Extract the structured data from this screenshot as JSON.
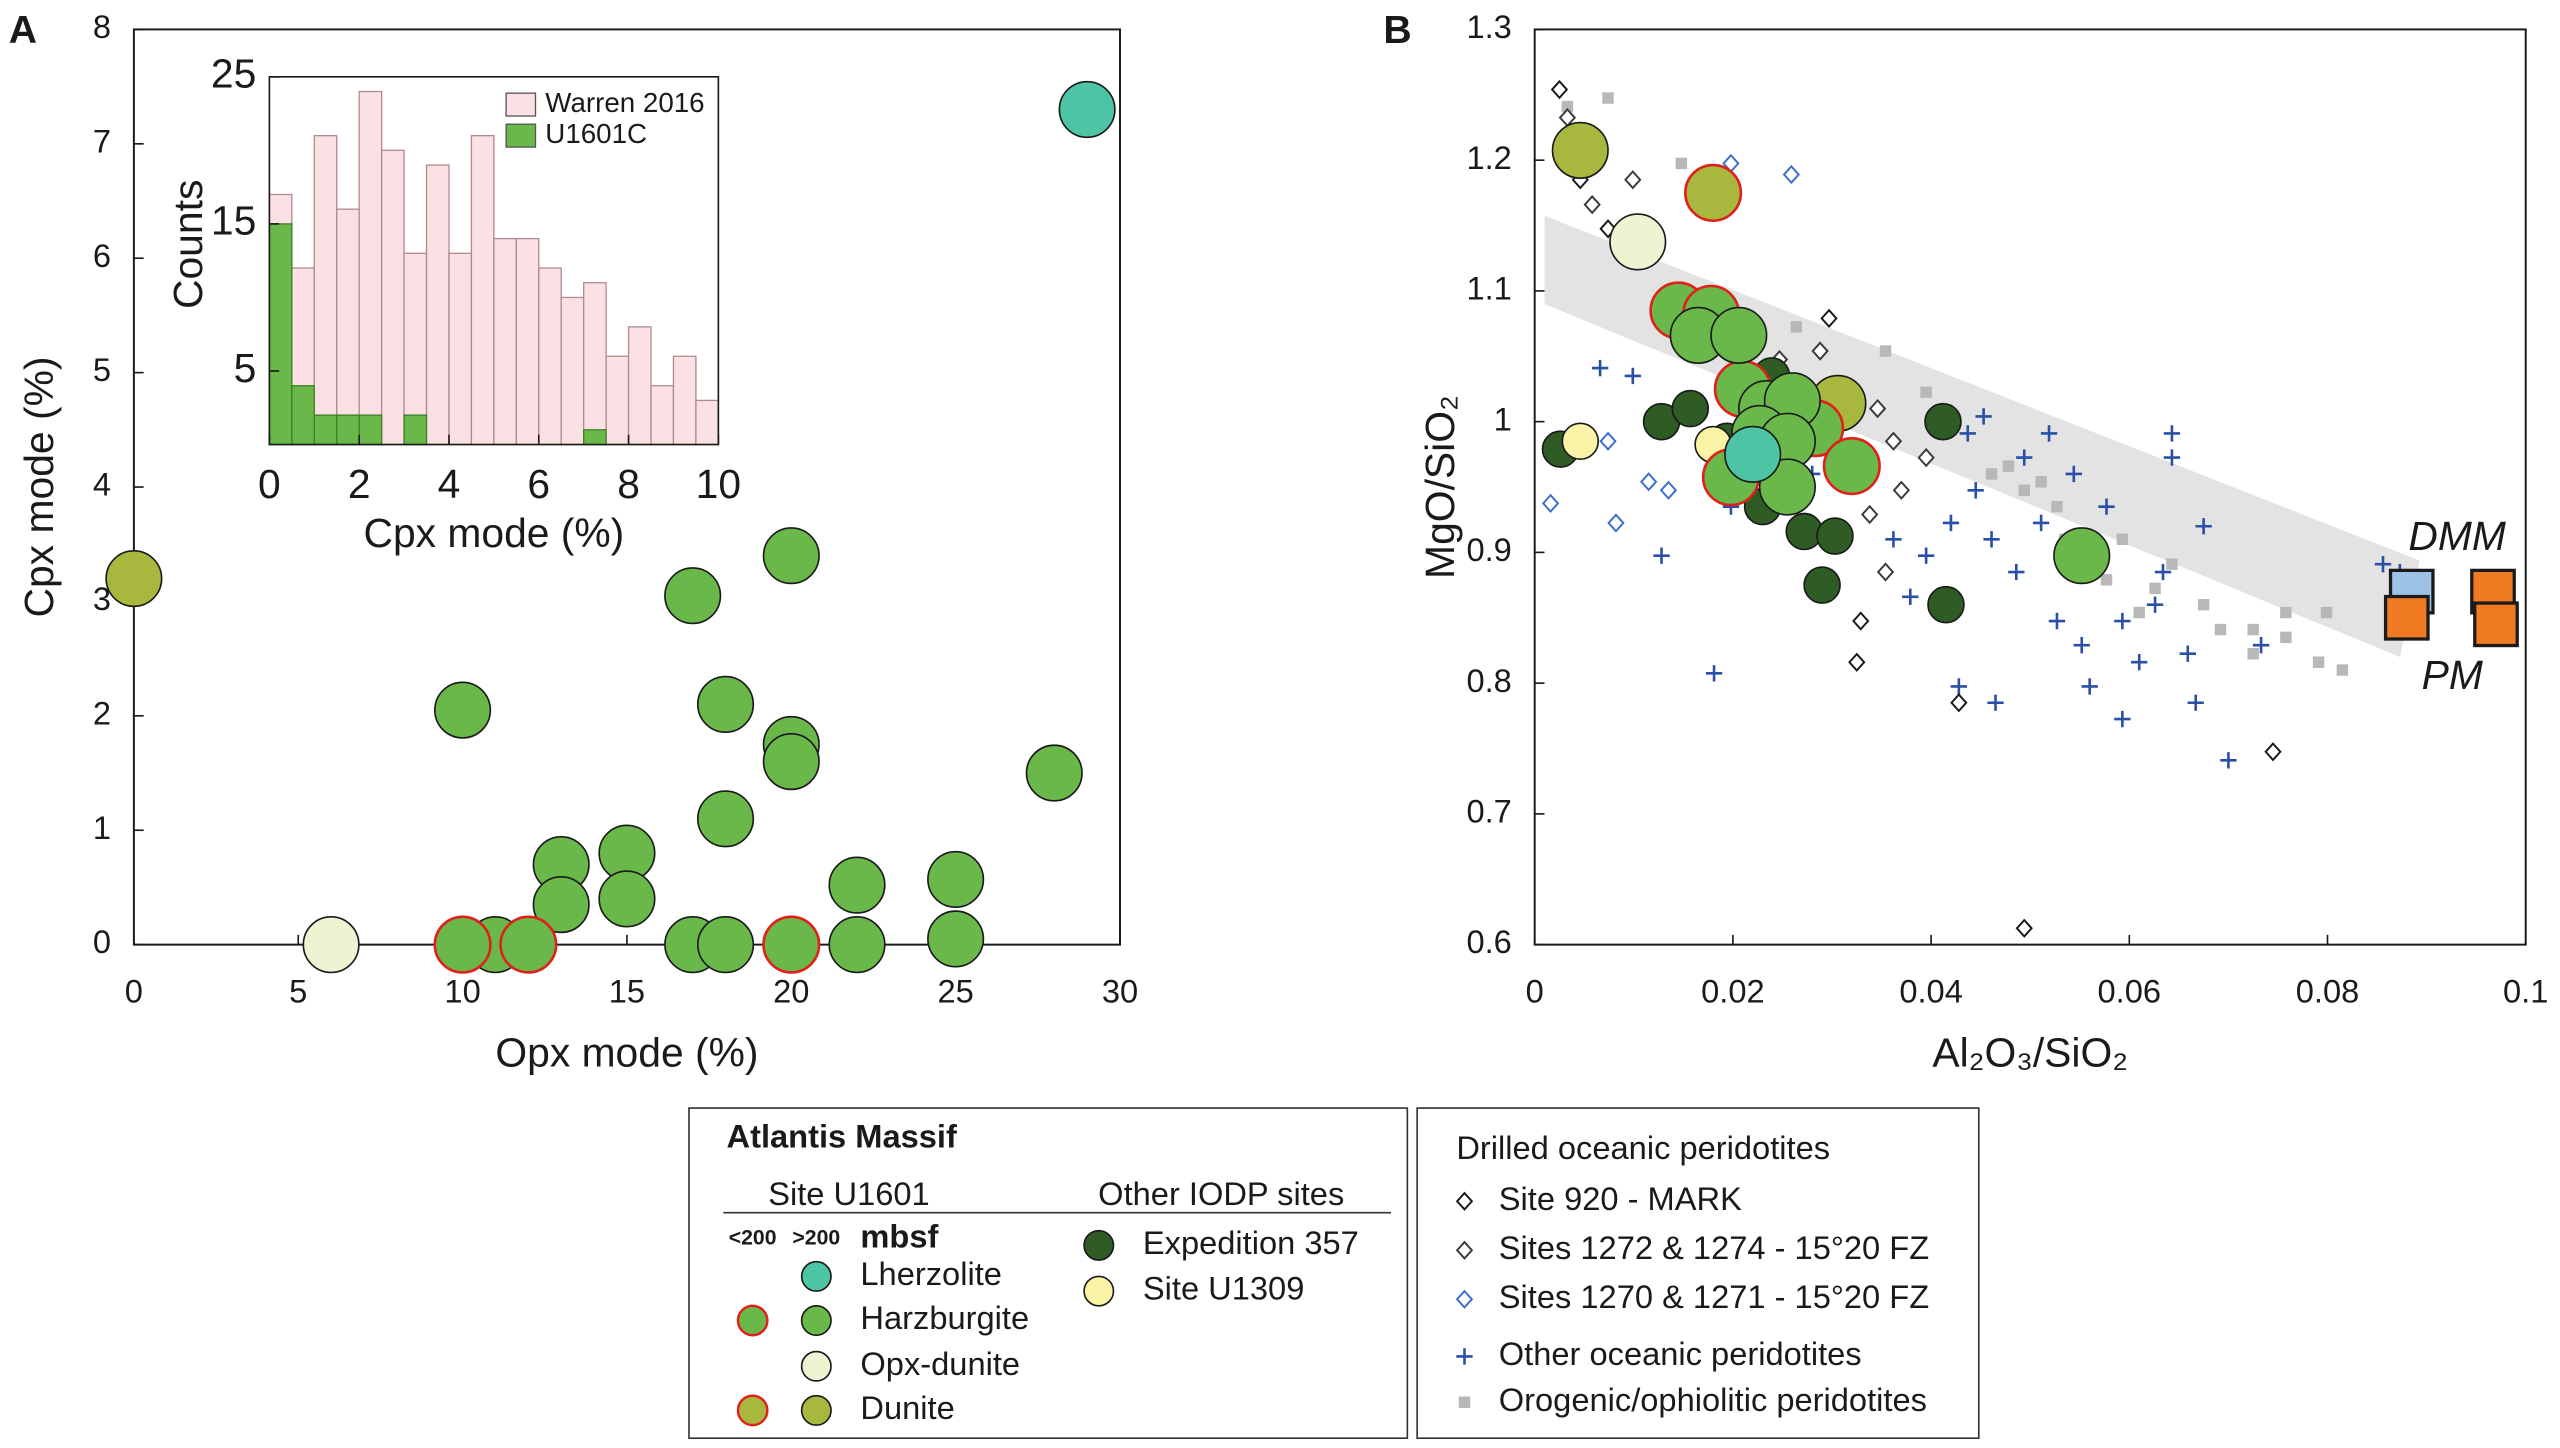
{
  "legend": {
    "title": "Atlantis Massif",
    "site": "Site U1601",
    "other": "Other IODP sites",
    "shallow": "<200",
    "deep": ">200",
    "unit": "mbsf",
    "drilled": "Drilled oceanic peridotites"
  },
  "chart_data": [
    {
      "type": "scatter",
      "panel": "A",
      "x_label": "Opx mode (%)",
      "y_label": "Cpx mode (%)",
      "xlim": [
        0,
        30
      ],
      "ylim": [
        0,
        8
      ],
      "xticks": [
        0,
        5,
        10,
        15,
        20,
        25,
        30
      ],
      "yticks": [
        0,
        1,
        2,
        3,
        4,
        5,
        6,
        7,
        8
      ],
      "series": [
        {
          "color": "#a8b83e",
          "marker": "circle",
          "x": [
            0
          ],
          "values": [
            3.2
          ]
        },
        {
          "color": "#eef3d2",
          "marker": "circle",
          "x": [
            6
          ],
          "values": [
            0
          ]
        },
        {
          "color": "#6bb84a",
          "marker": "circle",
          "x": [
            17,
            20,
            10,
            18,
            20,
            20,
            18,
            28,
            13,
            15,
            13,
            15,
            22,
            25,
            25,
            22,
            17,
            18,
            11
          ],
          "values": [
            3.05,
            3.4,
            2.05,
            2.1,
            1.75,
            1.6,
            1.1,
            1.5,
            0.7,
            0.8,
            0.35,
            0.4,
            0.52,
            0.57,
            0.05,
            0,
            0,
            0,
            0
          ]
        },
        {
          "color": "#6bb84a",
          "edgecolor": "#e0201b",
          "marker": "circle",
          "x": [
            10,
            12,
            20
          ],
          "values": [
            0,
            0,
            0
          ]
        },
        {
          "color": "#4dc4a4",
          "marker": "circle",
          "x": [
            29
          ],
          "values": [
            7.3
          ]
        }
      ]
    },
    {
      "type": "histogram",
      "x_label": "Cpx mode (%)",
      "y_label": "Counts",
      "xlim": [
        0,
        10
      ],
      "ylim": [
        0,
        25
      ],
      "xticks": [
        0,
        2,
        4,
        6,
        8,
        10
      ],
      "yticks": [
        5,
        15,
        25
      ],
      "bins": [
        0,
        0.5,
        1,
        1.5,
        2,
        2.5,
        3,
        3.5,
        4,
        4.5,
        5,
        5.5,
        6,
        6.5,
        7,
        7.5,
        8,
        8.5,
        9,
        9.5,
        10
      ],
      "series": [
        {
          "name": "Warren 2016",
          "color": "#fbe1e3",
          "values": [
            17,
            12,
            21,
            16,
            24,
            20,
            13,
            19,
            13,
            21,
            14,
            14,
            12,
            10,
            11,
            6,
            8,
            4,
            6,
            3
          ]
        },
        {
          "name": "U1601C",
          "color": "#6bb84a",
          "values": [
            15,
            4,
            2,
            2,
            2,
            0,
            2,
            0,
            0,
            0,
            0,
            0,
            0,
            0,
            1,
            0,
            0,
            0,
            0,
            0
          ]
        }
      ]
    },
    {
      "type": "scatter",
      "panel": "B",
      "x_label": "Al₂O₃/SiO₂",
      "y_label": "MgO/SiO₂",
      "xlim": [
        0,
        0.1
      ],
      "ylim": [
        0.6,
        1.3
      ],
      "xticks": [
        0,
        0.02,
        0.04,
        0.06,
        0.08,
        0.1
      ],
      "yticks": [
        0.6,
        0.7,
        0.8,
        0.9,
        1,
        1.1,
        1.2,
        1.3
      ],
      "series": [
        {
          "name": "Orogenic/ophiolitic peridotites",
          "color": "#b8b8b8",
          "marker": "square",
          "x": [
            0.0033,
            0.0074,
            0.0148,
            0.0099,
            0.0264,
            0.0354,
            0.0395,
            0.0461,
            0.0494,
            0.0527,
            0.0593,
            0.0626,
            0.0675,
            0.0725,
            0.0758,
            0.0791,
            0.0815,
            0.0725,
            0.0643,
            0.0577,
            0.0544,
            0.061,
            0.0799,
            0.0511,
            0.0478,
            0.0535,
            0.0692,
            0.0758
          ],
          "values": [
            1.241,
            1.2475,
            1.1975,
            1.1225,
            1.0725,
            1.054,
            1.0225,
            0.96,
            0.9475,
            0.935,
            0.91,
            0.8725,
            0.86,
            0.841,
            0.835,
            0.816,
            0.81,
            0.8225,
            0.891,
            0.879,
            0.891,
            0.854,
            0.854,
            0.954,
            0.966,
            0.91,
            0.841,
            0.854
          ]
        },
        {
          "name": "Other oceanic peridotites",
          "color": "#2a4fa8",
          "marker": "plus",
          "x": [
            0.0181,
            0.0128,
            0.0428,
            0.0465,
            0.0527,
            0.0593,
            0.061,
            0.0643,
            0.0643,
            0.0667,
            0.0675,
            0.07,
            0.0733,
            0.0445,
            0.0461,
            0.0486,
            0.0511,
            0.0544,
            0.0577,
            0.0494,
            0.042,
            0.0395,
            0.0379,
            0.0362,
            0.0437,
            0.0453,
            0.0519,
            0.056,
            0.0626,
            0.0593,
            0.0659,
            0.0231,
            0.0099,
            0.0066,
            0.0198,
            0.028,
            0.0856,
            0.0873,
            0.0634,
            0.0552
          ],
          "values": [
            0.8075,
            0.8975,
            0.7975,
            0.785,
            0.8475,
            0.7725,
            0.816,
            0.9725,
            0.991,
            0.785,
            0.92,
            0.741,
            0.829,
            0.9475,
            0.91,
            0.885,
            0.9225,
            0.96,
            0.935,
            0.9725,
            0.9225,
            0.8975,
            0.866,
            0.91,
            0.991,
            1.004,
            0.991,
            0.7975,
            0.86,
            0.8475,
            0.8225,
            1.041,
            1.035,
            1.041,
            0.935,
            0.96,
            0.891,
            0.885,
            0.885,
            0.829
          ]
        },
        {
          "name": "Site 920 - MARK",
          "color": "#1a1a1a",
          "marker": "diamond",
          "x": [
            0.0025,
            0.0046,
            0.0074,
            0.0297,
            0.0329,
            0.0428,
            0.0494,
            0.0745,
            0.0325
          ],
          "values": [
            1.254,
            1.185,
            1.1475,
            1.079,
            0.8475,
            0.785,
            0.6125,
            0.7475,
            0.816
          ]
        },
        {
          "name": "Sites 1272 & 1274 - 15°20 FZ",
          "color": "#3a3a3a",
          "marker": "diamond",
          "x": [
            0.0033,
            0.0058,
            0.0099,
            0.0247,
            0.0288,
            0.0346,
            0.0362,
            0.037,
            0.0395,
            0.0338,
            0.0354
          ],
          "values": [
            1.2325,
            1.166,
            1.185,
            1.0475,
            1.054,
            1.01,
            0.985,
            0.9475,
            0.9725,
            0.929,
            0.885
          ]
        },
        {
          "name": "Sites 1270 & 1271 - 15°20 FZ",
          "color": "#3a6fd0",
          "marker": "diamond",
          "x": [
            0.0016,
            0.0074,
            0.0082,
            0.0115,
            0.0198,
            0.0173,
            0.0259,
            0.0135
          ],
          "values": [
            0.9375,
            0.985,
            0.9225,
            0.954,
            1.1975,
            1.185,
            1.189,
            0.9475
          ]
        },
        {
          "name": "DMM",
          "color": "#9cc3e6",
          "marker": "bigsquare",
          "x": [
            0.0885
          ],
          "values": [
            0.87
          ]
        },
        {
          "name": "PM",
          "color": "#f07a22",
          "marker": "bigsquare",
          "x": [
            0.088,
            0.0967,
            0.097
          ],
          "values": [
            0.85,
            0.87,
            0.845
          ]
        },
        {
          "name": "Expedition 357",
          "color": "#2e5c24",
          "marker": "dot",
          "x": [
            0.0026,
            0.0128,
            0.0157,
            0.0194,
            0.023,
            0.0272,
            0.0303,
            0.029,
            0.0412,
            0.0415,
            0.0239
          ],
          "values": [
            0.979,
            1.0,
            1.01,
            0.985,
            0.935,
            0.916,
            0.9125,
            0.875,
            1.0,
            0.86,
            1.035
          ]
        },
        {
          "name": "Site U1309",
          "color": "#fbf3a6",
          "marker": "dot",
          "x": [
            0.0046,
            0.018
          ],
          "values": [
            0.985,
            0.9825
          ]
        },
        {
          "name": "Opx-dunite",
          "color": "#eef3d2",
          "marker": "circle",
          "x": [
            0.0104
          ],
          "values": [
            1.1375
          ]
        },
        {
          "color": "#a8b83e",
          "edgecolor": "#e0201b",
          "marker": "circle",
          "x": [
            0.018
          ],
          "values": [
            1.175
          ]
        },
        {
          "name": "Dunite",
          "color": "#a8b83e",
          "marker": "circle",
          "x": [
            0.0046,
            0.0306
          ],
          "values": [
            1.2075,
            1.014
          ]
        },
        {
          "color": "#6bb84a",
          "edgecolor": "#e0201b",
          "marker": "circle",
          "x": [
            0.0145,
            0.0178,
            0.021,
            0.0283,
            0.0198,
            0.032
          ],
          "values": [
            1.085,
            1.0825,
            1.025,
            0.995,
            0.9575,
            0.966
          ]
        },
        {
          "name": "Harzburgite",
          "color": "#6bb84a",
          "marker": "circle",
          "x": [
            0.0165,
            0.0206,
            0.0234,
            0.026,
            0.0227,
            0.0255,
            0.0255,
            0.0552
          ],
          "values": [
            1.066,
            1.066,
            1.01,
            1.016,
            0.991,
            0.985,
            0.95,
            0.8975
          ]
        },
        {
          "name": "Lherzolite",
          "color": "#4dc4a4",
          "marker": "circle",
          "x": [
            0.022
          ],
          "values": [
            0.975
          ]
        }
      ]
    }
  ]
}
